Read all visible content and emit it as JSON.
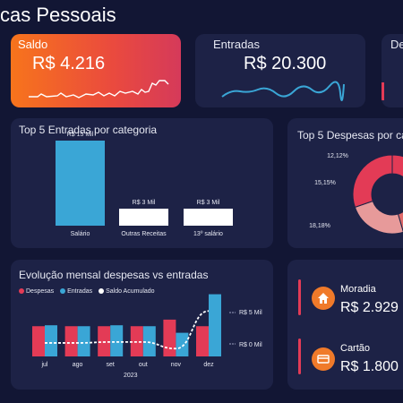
{
  "page_title": "cas Pessoais",
  "saldo": {
    "label": "Saldo",
    "value": "R$ 4.216"
  },
  "entradas": {
    "label": "Entradas",
    "value": "R$ 20.300"
  },
  "despesas_card": {
    "label": "De"
  },
  "top_entradas": {
    "title": "Top 5 Entradas por categoria",
    "chart_data": {
      "type": "bar",
      "categories": [
        "Salário",
        "Outras Receitas",
        "13º salário"
      ],
      "values": [
        15,
        3,
        3
      ],
      "data_labels": [
        "R$ 15 Mil",
        "R$ 3 Mil",
        "R$ 3 Mil"
      ],
      "colors": [
        "#3aa6d6",
        "#ffffff",
        "#ffffff"
      ]
    }
  },
  "top_despesas": {
    "title": "Top 5 Despesas por cat",
    "chart_data": {
      "type": "pie",
      "labels": [
        "12,12%",
        "15,15%",
        "18,18%"
      ],
      "slices": [
        {
          "value": 12.12,
          "color": "#e33b56"
        },
        {
          "value": 15.15,
          "color": "#3c5cc4"
        },
        {
          "value": 18.18,
          "color": "#e06a6a"
        },
        {
          "value": 24.24,
          "color": "#e79a9a"
        },
        {
          "value": 30.31,
          "color": "#e33b56"
        }
      ]
    }
  },
  "evolucao": {
    "title": "Evolução mensal despesas vs entradas",
    "legend": [
      {
        "label": "Despesas",
        "color": "#e33b56"
      },
      {
        "label": "Entradas",
        "color": "#3aa6d6"
      },
      {
        "label": "Saldo Acumulado",
        "color": "#ffffff"
      }
    ],
    "y_labels": [
      "R$ 5 Mil",
      "R$ 0 Mil"
    ],
    "year": "2023",
    "chart_data": {
      "type": "bar",
      "categories": [
        "jul",
        "ago",
        "set",
        "out",
        "nov",
        "dez"
      ],
      "series": [
        {
          "name": "Despesas",
          "values": [
            1.5,
            1.5,
            1.5,
            1.5,
            2.2,
            1.5
          ]
        },
        {
          "name": "Entradas",
          "values": [
            1.6,
            1.5,
            1.6,
            1.5,
            0.8,
            4.9
          ]
        },
        {
          "name": "Saldo Acumulado",
          "values": [
            0.1,
            0.1,
            0.2,
            0.2,
            -0.5,
            3.5
          ]
        }
      ],
      "ylim": [
        -1.5,
        5.5
      ]
    }
  },
  "categorias": [
    {
      "label": "Moradia",
      "value": "R$ 2.929",
      "icon": "house-icon"
    },
    {
      "label": "Cartão",
      "value": "R$ 1.800",
      "icon": "card-icon"
    }
  ]
}
